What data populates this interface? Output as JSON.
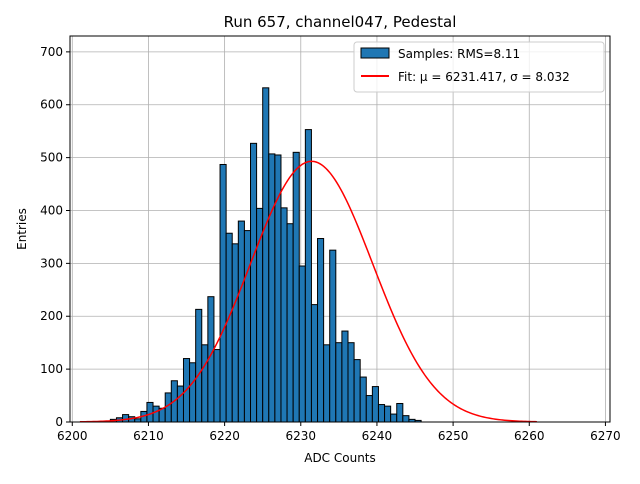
{
  "chart_data": {
    "type": "bar",
    "title": "Run 657, channel047, Pedestal",
    "xlabel": "ADC Counts",
    "ylabel": "Entries",
    "xlim": [
      6199.7,
      6270.6
    ],
    "ylim": [
      0,
      730
    ],
    "xticks": [
      6200,
      6210,
      6220,
      6230,
      6240,
      6250,
      6260,
      6270
    ],
    "yticks": [
      0,
      100,
      200,
      300,
      400,
      500,
      600,
      700
    ],
    "grid": true,
    "legend_position": "top-right",
    "bin_width": 0.8,
    "bins_start": 6205.0,
    "histogram": {
      "name": "Samples: RMS=8.11",
      "color": "#1f77b4",
      "edgecolor": "#000000",
      "counts": [
        5,
        8,
        14,
        10,
        6,
        20,
        37,
        30,
        26,
        55,
        78,
        68,
        120,
        112,
        213,
        146,
        237,
        137,
        487,
        357,
        337,
        380,
        362,
        527,
        404,
        632,
        507,
        505,
        405,
        375,
        510,
        295,
        553,
        222,
        347,
        146,
        325,
        150,
        172,
        150,
        118,
        85,
        50,
        67,
        33,
        30,
        15,
        35,
        12,
        5,
        3
      ]
    },
    "fit": {
      "name": "Fit: μ = 6231.417, σ = 8.032",
      "color": "#ff0000",
      "mu": 6231.417,
      "sigma": 8.032,
      "amplitude": 493,
      "x_range": [
        6201,
        6261
      ]
    }
  }
}
